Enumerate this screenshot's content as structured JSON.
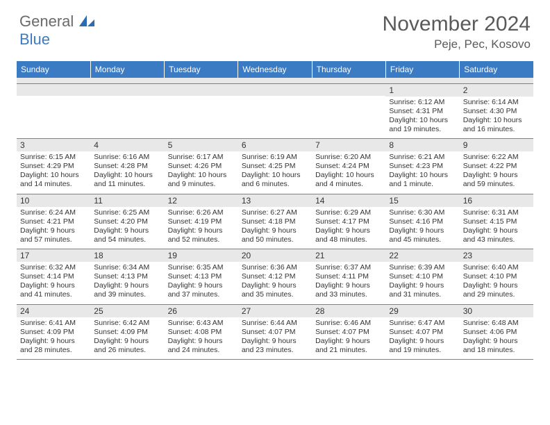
{
  "logo": {
    "word1": "General",
    "word2": "Blue"
  },
  "title": "November 2024",
  "location": "Peje, Pec, Kosovo",
  "colors": {
    "header_bg": "#3b7bc4",
    "header_text": "#ffffff",
    "daynum_bg": "#e8e8e8",
    "grid_line": "#808080",
    "text": "#333333",
    "logo_gray": "#6a6a6a",
    "logo_blue": "#3b7bc4"
  },
  "day_headers": [
    "Sunday",
    "Monday",
    "Tuesday",
    "Wednesday",
    "Thursday",
    "Friday",
    "Saturday"
  ],
  "weeks": [
    [
      {
        "n": "",
        "lines": []
      },
      {
        "n": "",
        "lines": []
      },
      {
        "n": "",
        "lines": []
      },
      {
        "n": "",
        "lines": []
      },
      {
        "n": "",
        "lines": []
      },
      {
        "n": "1",
        "lines": [
          "Sunrise: 6:12 AM",
          "Sunset: 4:31 PM",
          "Daylight: 10 hours and 19 minutes."
        ]
      },
      {
        "n": "2",
        "lines": [
          "Sunrise: 6:14 AM",
          "Sunset: 4:30 PM",
          "Daylight: 10 hours and 16 minutes."
        ]
      }
    ],
    [
      {
        "n": "3",
        "lines": [
          "Sunrise: 6:15 AM",
          "Sunset: 4:29 PM",
          "Daylight: 10 hours and 14 minutes."
        ]
      },
      {
        "n": "4",
        "lines": [
          "Sunrise: 6:16 AM",
          "Sunset: 4:28 PM",
          "Daylight: 10 hours and 11 minutes."
        ]
      },
      {
        "n": "5",
        "lines": [
          "Sunrise: 6:17 AM",
          "Sunset: 4:26 PM",
          "Daylight: 10 hours and 9 minutes."
        ]
      },
      {
        "n": "6",
        "lines": [
          "Sunrise: 6:19 AM",
          "Sunset: 4:25 PM",
          "Daylight: 10 hours and 6 minutes."
        ]
      },
      {
        "n": "7",
        "lines": [
          "Sunrise: 6:20 AM",
          "Sunset: 4:24 PM",
          "Daylight: 10 hours and 4 minutes."
        ]
      },
      {
        "n": "8",
        "lines": [
          "Sunrise: 6:21 AM",
          "Sunset: 4:23 PM",
          "Daylight: 10 hours and 1 minute."
        ]
      },
      {
        "n": "9",
        "lines": [
          "Sunrise: 6:22 AM",
          "Sunset: 4:22 PM",
          "Daylight: 9 hours and 59 minutes."
        ]
      }
    ],
    [
      {
        "n": "10",
        "lines": [
          "Sunrise: 6:24 AM",
          "Sunset: 4:21 PM",
          "Daylight: 9 hours and 57 minutes."
        ]
      },
      {
        "n": "11",
        "lines": [
          "Sunrise: 6:25 AM",
          "Sunset: 4:20 PM",
          "Daylight: 9 hours and 54 minutes."
        ]
      },
      {
        "n": "12",
        "lines": [
          "Sunrise: 6:26 AM",
          "Sunset: 4:19 PM",
          "Daylight: 9 hours and 52 minutes."
        ]
      },
      {
        "n": "13",
        "lines": [
          "Sunrise: 6:27 AM",
          "Sunset: 4:18 PM",
          "Daylight: 9 hours and 50 minutes."
        ]
      },
      {
        "n": "14",
        "lines": [
          "Sunrise: 6:29 AM",
          "Sunset: 4:17 PM",
          "Daylight: 9 hours and 48 minutes."
        ]
      },
      {
        "n": "15",
        "lines": [
          "Sunrise: 6:30 AM",
          "Sunset: 4:16 PM",
          "Daylight: 9 hours and 45 minutes."
        ]
      },
      {
        "n": "16",
        "lines": [
          "Sunrise: 6:31 AM",
          "Sunset: 4:15 PM",
          "Daylight: 9 hours and 43 minutes."
        ]
      }
    ],
    [
      {
        "n": "17",
        "lines": [
          "Sunrise: 6:32 AM",
          "Sunset: 4:14 PM",
          "Daylight: 9 hours and 41 minutes."
        ]
      },
      {
        "n": "18",
        "lines": [
          "Sunrise: 6:34 AM",
          "Sunset: 4:13 PM",
          "Daylight: 9 hours and 39 minutes."
        ]
      },
      {
        "n": "19",
        "lines": [
          "Sunrise: 6:35 AM",
          "Sunset: 4:13 PM",
          "Daylight: 9 hours and 37 minutes."
        ]
      },
      {
        "n": "20",
        "lines": [
          "Sunrise: 6:36 AM",
          "Sunset: 4:12 PM",
          "Daylight: 9 hours and 35 minutes."
        ]
      },
      {
        "n": "21",
        "lines": [
          "Sunrise: 6:37 AM",
          "Sunset: 4:11 PM",
          "Daylight: 9 hours and 33 minutes."
        ]
      },
      {
        "n": "22",
        "lines": [
          "Sunrise: 6:39 AM",
          "Sunset: 4:10 PM",
          "Daylight: 9 hours and 31 minutes."
        ]
      },
      {
        "n": "23",
        "lines": [
          "Sunrise: 6:40 AM",
          "Sunset: 4:10 PM",
          "Daylight: 9 hours and 29 minutes."
        ]
      }
    ],
    [
      {
        "n": "24",
        "lines": [
          "Sunrise: 6:41 AM",
          "Sunset: 4:09 PM",
          "Daylight: 9 hours and 28 minutes."
        ]
      },
      {
        "n": "25",
        "lines": [
          "Sunrise: 6:42 AM",
          "Sunset: 4:09 PM",
          "Daylight: 9 hours and 26 minutes."
        ]
      },
      {
        "n": "26",
        "lines": [
          "Sunrise: 6:43 AM",
          "Sunset: 4:08 PM",
          "Daylight: 9 hours and 24 minutes."
        ]
      },
      {
        "n": "27",
        "lines": [
          "Sunrise: 6:44 AM",
          "Sunset: 4:07 PM",
          "Daylight: 9 hours and 23 minutes."
        ]
      },
      {
        "n": "28",
        "lines": [
          "Sunrise: 6:46 AM",
          "Sunset: 4:07 PM",
          "Daylight: 9 hours and 21 minutes."
        ]
      },
      {
        "n": "29",
        "lines": [
          "Sunrise: 6:47 AM",
          "Sunset: 4:07 PM",
          "Daylight: 9 hours and 19 minutes."
        ]
      },
      {
        "n": "30",
        "lines": [
          "Sunrise: 6:48 AM",
          "Sunset: 4:06 PM",
          "Daylight: 9 hours and 18 minutes."
        ]
      }
    ]
  ]
}
